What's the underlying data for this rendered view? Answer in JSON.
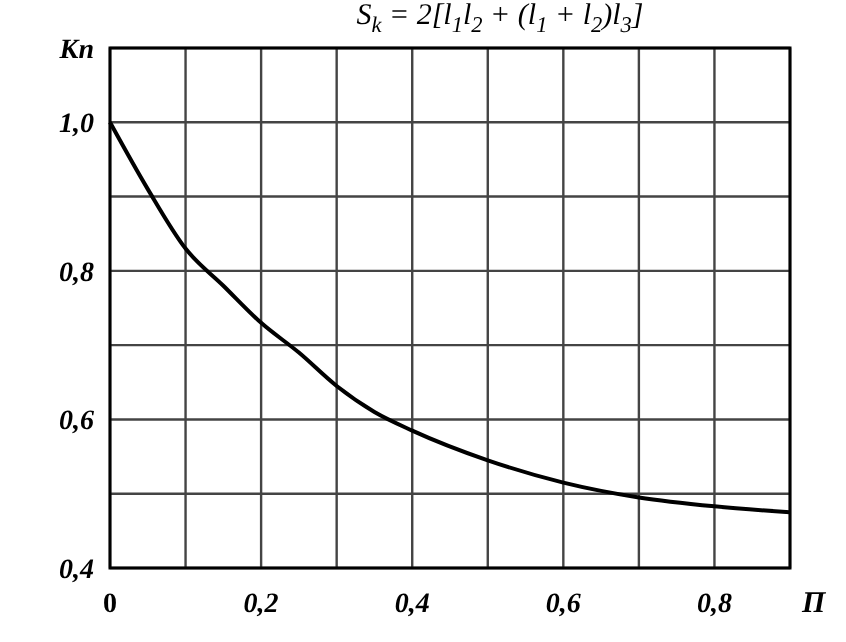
{
  "chart_data": {
    "type": "line",
    "title": "S$_{k}$ = 2[l$_{1}$l$_{2}$ + (l$_{1}$ + l$_{2}$)l$_{3}$]",
    "xlabel": "П",
    "ylabel": "Кп",
    "x": [
      0,
      0.05,
      0.1,
      0.15,
      0.2,
      0.25,
      0.3,
      0.35,
      0.4,
      0.5,
      0.6,
      0.7,
      0.8,
      0.9
    ],
    "series": [
      {
        "color": "#000000",
        "values": [
          1.0,
          0.91,
          0.83,
          0.78,
          0.73,
          0.69,
          0.645,
          0.61,
          0.585,
          0.545,
          0.515,
          0.495,
          0.483,
          0.475
        ]
      }
    ],
    "xlim": [
      0,
      0.9
    ],
    "ylim": [
      0.4,
      1.1
    ],
    "xticks": [
      {
        "value": 0,
        "label": "0"
      },
      {
        "value": 0.1,
        "label": null
      },
      {
        "value": 0.2,
        "label": "0,2"
      },
      {
        "value": 0.3,
        "label": null
      },
      {
        "value": 0.4,
        "label": "0,4"
      },
      {
        "value": 0.5,
        "label": null
      },
      {
        "value": 0.6,
        "label": "0,6"
      },
      {
        "value": 0.7,
        "label": null
      },
      {
        "value": 0.8,
        "label": "0,8"
      },
      {
        "value": 0.9,
        "label": null
      }
    ],
    "yticks": [
      {
        "value": 0.4,
        "label": "0,4"
      },
      {
        "value": 0.5,
        "label": null
      },
      {
        "value": 0.6,
        "label": "0,6"
      },
      {
        "value": 0.7,
        "label": null
      },
      {
        "value": 0.8,
        "label": "0,8"
      },
      {
        "value": 0.9,
        "label": null
      },
      {
        "value": 1.0,
        "label": "1,0"
      },
      {
        "value": 1.1,
        "label": null
      }
    ],
    "grid": true,
    "marker": "none",
    "line_style": "solid"
  }
}
